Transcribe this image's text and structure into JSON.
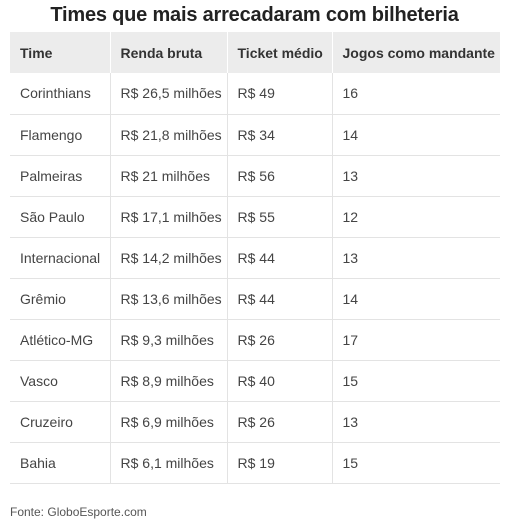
{
  "title": "Times que mais arrecadaram com bilheteria",
  "table": {
    "headers": [
      "Time",
      "Renda bruta",
      "Ticket médio",
      "Jogos como mandante"
    ],
    "rows": [
      [
        "Corinthians",
        "R$ 26,5 milhões",
        "R$ 49",
        "16"
      ],
      [
        "Flamengo",
        "R$ 21,8 milhões",
        "R$ 34",
        "14"
      ],
      [
        "Palmeiras",
        "R$ 21 milhões",
        "R$ 56",
        "13"
      ],
      [
        "São Paulo",
        "R$ 17,1 milhões",
        "R$ 55",
        "12"
      ],
      [
        "Internacional",
        "R$ 14,2 milhões",
        "R$ 44",
        "13"
      ],
      [
        "Grêmio",
        "R$ 13,6 milhões",
        "R$ 44",
        "14"
      ],
      [
        "Atlético-MG",
        "R$ 9,3 milhões",
        "R$ 26",
        "17"
      ],
      [
        "Vasco",
        "R$ 8,9 milhões",
        "R$ 40",
        "15"
      ],
      [
        "Cruzeiro",
        "R$ 6,9 milhões",
        "R$ 26",
        "13"
      ],
      [
        "Bahia",
        "R$ 6,1 milhões",
        "R$ 19",
        "15"
      ]
    ]
  },
  "source": "Fonte: GloboEsporte.com"
}
